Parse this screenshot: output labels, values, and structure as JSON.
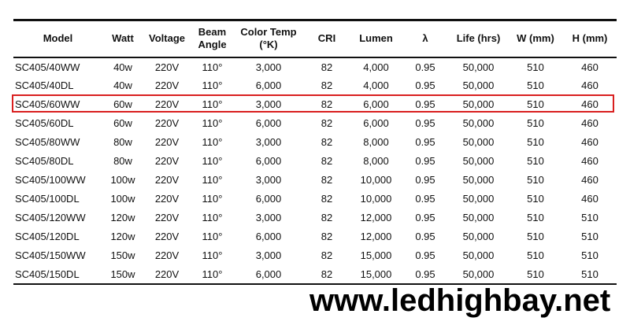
{
  "table": {
    "headers": [
      "Model",
      "Watt",
      "Voltage",
      "Beam Angle",
      "Color Temp (°K)",
      "CRI",
      "Lumen",
      "λ",
      "Life (hrs)",
      "W (mm)",
      "H (mm)"
    ],
    "rows": [
      [
        "SC405/40WW",
        "40w",
        "220V",
        "110°",
        "3,000",
        "82",
        "4,000",
        "0.95",
        "50,000",
        "510",
        "460"
      ],
      [
        "SC405/40DL",
        "40w",
        "220V",
        "110°",
        "6,000",
        "82",
        "4,000",
        "0.95",
        "50,000",
        "510",
        "460"
      ],
      [
        "SC405/60WW",
        "60w",
        "220V",
        "110°",
        "3,000",
        "82",
        "6,000",
        "0.95",
        "50,000",
        "510",
        "460"
      ],
      [
        "SC405/60DL",
        "60w",
        "220V",
        "110°",
        "6,000",
        "82",
        "6,000",
        "0.95",
        "50,000",
        "510",
        "460"
      ],
      [
        "SC405/80WW",
        "80w",
        "220V",
        "110°",
        "3,000",
        "82",
        "8,000",
        "0.95",
        "50,000",
        "510",
        "460"
      ],
      [
        "SC405/80DL",
        "80w",
        "220V",
        "110°",
        "6,000",
        "82",
        "8,000",
        "0.95",
        "50,000",
        "510",
        "460"
      ],
      [
        "SC405/100WW",
        "100w",
        "220V",
        "110°",
        "3,000",
        "82",
        "10,000",
        "0.95",
        "50,000",
        "510",
        "460"
      ],
      [
        "SC405/100DL",
        "100w",
        "220V",
        "110°",
        "6,000",
        "82",
        "10,000",
        "0.95",
        "50,000",
        "510",
        "460"
      ],
      [
        "SC405/120WW",
        "120w",
        "220V",
        "110°",
        "3,000",
        "82",
        "12,000",
        "0.95",
        "50,000",
        "510",
        "510"
      ],
      [
        "SC405/120DL",
        "120w",
        "220V",
        "110°",
        "6,000",
        "82",
        "12,000",
        "0.95",
        "50,000",
        "510",
        "510"
      ],
      [
        "SC405/150WW",
        "150w",
        "220V",
        "110°",
        "3,000",
        "82",
        "15,000",
        "0.95",
        "50,000",
        "510",
        "510"
      ],
      [
        "SC405/150DL",
        "150w",
        "220V",
        "110°",
        "6,000",
        "82",
        "15,000",
        "0.95",
        "50,000",
        "510",
        "510"
      ]
    ],
    "highlighted_row": "SC405/60WW",
    "highlight_color": "#d91f1f"
  },
  "watermark": "www.ledhighbay.net"
}
